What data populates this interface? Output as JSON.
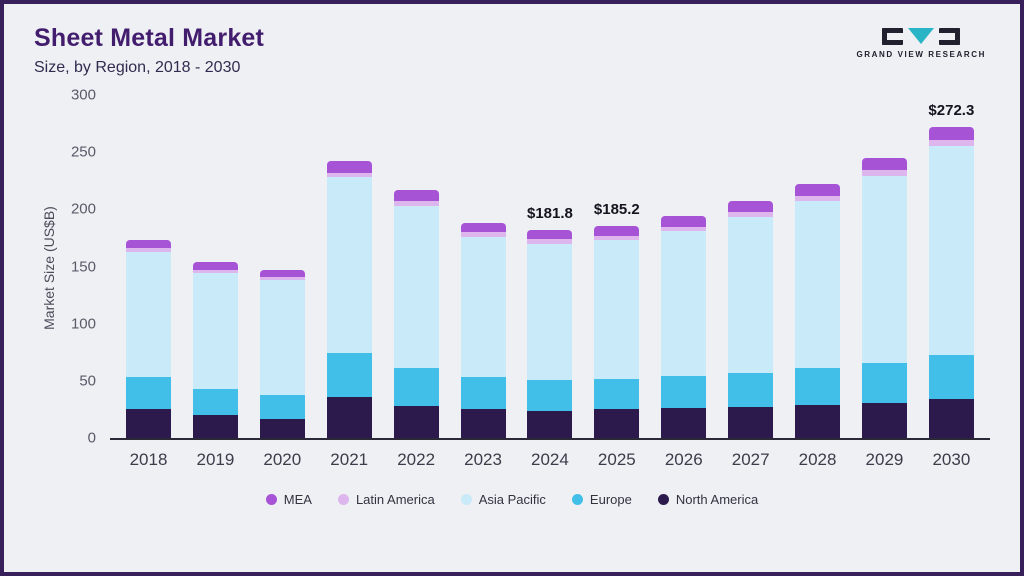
{
  "header": {
    "title": "Sheet Metal Market",
    "subtitle": "Size, by Region, 2018 - 2030"
  },
  "logo": {
    "text": "GRAND VIEW RESEARCH",
    "accent_color": "#2ab5c6",
    "dark_color": "#20202e"
  },
  "chart_data": {
    "type": "bar",
    "stacked": true,
    "title": "Sheet Metal Market Size, by Region, 2018 - 2030",
    "ylabel": "Market Size (US$B)",
    "ylim": [
      0,
      300
    ],
    "yticks": [
      0,
      50,
      100,
      150,
      200,
      250,
      300
    ],
    "grid": false,
    "legend_position": "bottom",
    "categories": [
      "2018",
      "2019",
      "2020",
      "2021",
      "2022",
      "2023",
      "2024",
      "2025",
      "2026",
      "2027",
      "2028",
      "2029",
      "2030"
    ],
    "series": [
      {
        "name": "North America",
        "color": "#2c1a4d",
        "values": [
          25,
          20,
          17,
          36,
          28,
          25,
          24,
          25,
          26,
          27,
          29,
          31,
          34
        ]
      },
      {
        "name": "Europe",
        "color": "#41bfe8",
        "values": [
          28,
          23,
          21,
          38,
          33,
          28,
          27,
          27,
          28,
          30,
          32,
          35,
          39
        ]
      },
      {
        "name": "Asia Pacific",
        "color": "#c9eaf8",
        "values": [
          110,
          101,
          100,
          154,
          142,
          123,
          119,
          121,
          127,
          136,
          146,
          163,
          182
        ]
      },
      {
        "name": "Latin America",
        "color": "#dcb6ec",
        "values": [
          3,
          3,
          3,
          4,
          4,
          4,
          4,
          4,
          4,
          5,
          5,
          5,
          6
        ]
      },
      {
        "name": "MEA",
        "color": "#a653d6",
        "values": [
          7,
          7,
          6,
          10,
          10,
          8,
          7.8,
          8.2,
          9,
          9,
          10,
          11,
          11.3
        ]
      }
    ],
    "annotations": {
      "2024": "$181.8",
      "2025": "$185.2",
      "2030": "$272.3"
    }
  },
  "legend": {
    "items": [
      {
        "label": "MEA",
        "color": "#a653d6"
      },
      {
        "label": "Latin America",
        "color": "#dcb6ec"
      },
      {
        "label": "Asia Pacific",
        "color": "#c9eaf8"
      },
      {
        "label": "Europe",
        "color": "#41bfe8"
      },
      {
        "label": "North America",
        "color": "#2c1a4d"
      }
    ]
  }
}
